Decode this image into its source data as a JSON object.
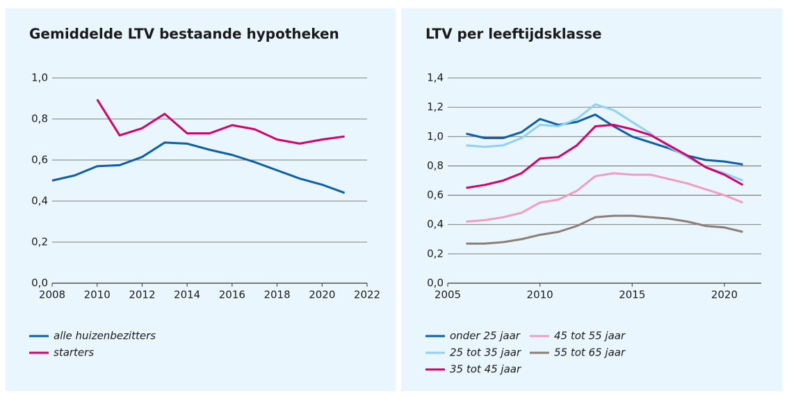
{
  "chart_data": [
    {
      "type": "line",
      "title": "Gemiddelde LTV bestaande hypotheken",
      "x": [
        2008,
        2009,
        2010,
        2011,
        2012,
        2013,
        2014,
        2015,
        2016,
        2017,
        2018,
        2019,
        2020,
        2021
      ],
      "xlim": [
        2008,
        2022
      ],
      "xticks": [
        2008,
        2010,
        2012,
        2014,
        2016,
        2018,
        2020,
        2022
      ],
      "ylim": [
        0,
        1.0
      ],
      "yticks": [
        {
          "value": 0,
          "label": "0,0"
        },
        {
          "value": 0.2,
          "label": "0,2"
        },
        {
          "value": 0.4,
          "label": "0,4"
        },
        {
          "value": 0.6,
          "label": "0,6"
        },
        {
          "value": 0.8,
          "label": "0,8"
        },
        {
          "value": 1.0,
          "label": "1,0"
        }
      ],
      "grid": true,
      "series": [
        {
          "name": "alle huizenbezitters",
          "color": "#0b5ea8",
          "values": [
            0.5,
            0.525,
            0.57,
            0.575,
            0.615,
            0.685,
            0.68,
            0.65,
            0.625,
            0.59,
            0.55,
            0.51,
            0.48,
            0.44
          ]
        },
        {
          "name": "starters",
          "color": "#d6006a",
          "values": [
            null,
            null,
            0.895,
            0.72,
            0.755,
            0.825,
            0.73,
            0.73,
            0.77,
            0.75,
            0.7,
            0.68,
            0.7,
            0.715
          ]
        }
      ]
    },
    {
      "type": "line",
      "title": "LTV per leeftijdsklasse",
      "x": [
        2006,
        2007,
        2008,
        2009,
        2010,
        2011,
        2012,
        2013,
        2014,
        2015,
        2016,
        2017,
        2018,
        2019,
        2020,
        2021
      ],
      "xlim": [
        2005,
        2022
      ],
      "xticks": [
        2005,
        2010,
        2015,
        2020
      ],
      "ylim": [
        0,
        1.4
      ],
      "yticks": [
        {
          "value": 0,
          "label": "0,0"
        },
        {
          "value": 0.2,
          "label": "0,2"
        },
        {
          "value": 0.4,
          "label": "0,4"
        },
        {
          "value": 0.6,
          "label": "0,6"
        },
        {
          "value": 0.8,
          "label": "0,8"
        },
        {
          "value": 1.0,
          "label": "1,0"
        },
        {
          "value": 1.2,
          "label": "1,2"
        },
        {
          "value": 1.4,
          "label": "1,4"
        }
      ],
      "grid": true,
      "series": [
        {
          "name": "onder 25 jaar",
          "color": "#0b5ea8",
          "values": [
            1.02,
            0.99,
            0.99,
            1.03,
            1.12,
            1.08,
            1.1,
            1.15,
            1.07,
            1.0,
            0.96,
            0.92,
            0.87,
            0.84,
            0.83,
            0.81
          ]
        },
        {
          "name": "25 tot 35 jaar",
          "color": "#8fd0f5",
          "values": [
            0.94,
            0.93,
            0.94,
            0.99,
            1.08,
            1.07,
            1.12,
            1.22,
            1.18,
            1.1,
            1.02,
            0.93,
            0.86,
            0.79,
            0.75,
            0.7
          ]
        },
        {
          "name": "35 tot 45 jaar",
          "color": "#d6006a",
          "values": [
            0.65,
            0.67,
            0.7,
            0.75,
            0.85,
            0.86,
            0.94,
            1.07,
            1.08,
            1.05,
            1.01,
            0.94,
            0.87,
            0.79,
            0.74,
            0.67
          ]
        },
        {
          "name": "45 tot 55 jaar",
          "color": "#f39cc3",
          "values": [
            0.42,
            0.43,
            0.45,
            0.48,
            0.55,
            0.57,
            0.63,
            0.73,
            0.75,
            0.74,
            0.74,
            0.71,
            0.68,
            0.64,
            0.6,
            0.55
          ]
        },
        {
          "name": "55 tot 65 jaar",
          "color": "#8c7d77",
          "values": [
            0.27,
            0.27,
            0.28,
            0.3,
            0.33,
            0.35,
            0.39,
            0.45,
            0.46,
            0.46,
            0.45,
            0.44,
            0.42,
            0.39,
            0.38,
            0.35
          ]
        }
      ]
    }
  ]
}
